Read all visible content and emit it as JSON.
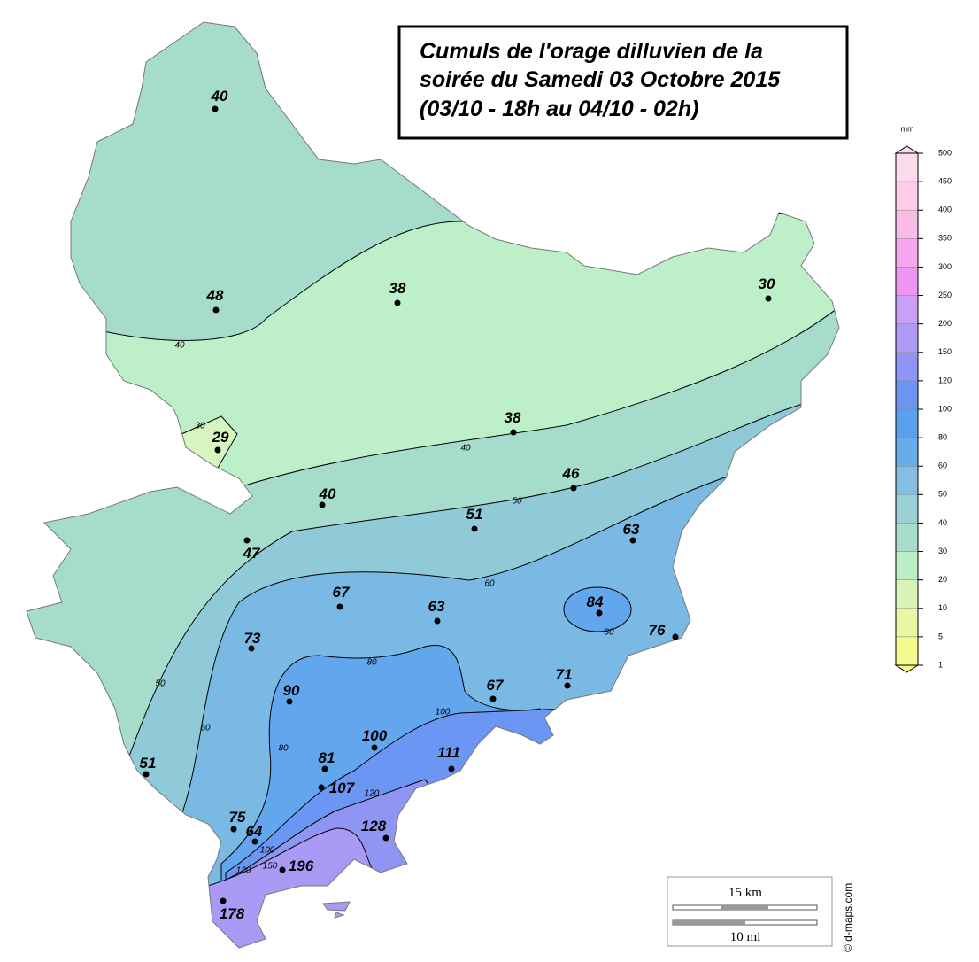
{
  "title": [
    "Cumuls de l'orage dilluvien de la",
    "soirée du Samedi 03 Octobre 2015",
    "(03/10 - 18h au 04/10 - 02h)"
  ],
  "stations": [
    40,
    48,
    38,
    30,
    29,
    38,
    46,
    40,
    51,
    47,
    63,
    67,
    63,
    84,
    76,
    73,
    90,
    67,
    71,
    100,
    81,
    111,
    107,
    51,
    75,
    64,
    128,
    196,
    178
  ],
  "contours": [
    40,
    40,
    30,
    50,
    60,
    80,
    80,
    50,
    60,
    80,
    100,
    120,
    100,
    120,
    150
  ],
  "legend": {
    "unit": "mm",
    "ticks": [
      500,
      450,
      400,
      350,
      300,
      250,
      200,
      150,
      120,
      100,
      80,
      60,
      50,
      40,
      30,
      20,
      10,
      5,
      1
    ],
    "colors": [
      "#fcdcec",
      "#fbcde8",
      "#f8bde7",
      "#f5a9ec",
      "#ee94f2",
      "#c8a0f5",
      "#ad9bf3",
      "#8f95f5",
      "#6a96f2",
      "#5aa0ef",
      "#68aceb",
      "#84bee0",
      "#9ad0d6",
      "#a8dccb",
      "#bdefc6",
      "#d8f4b8",
      "#e9f7a4",
      "#f4fb8c"
    ]
  },
  "scale": {
    "km": "15 km",
    "mi": "10 mi"
  },
  "credit": "© d-maps.com"
}
